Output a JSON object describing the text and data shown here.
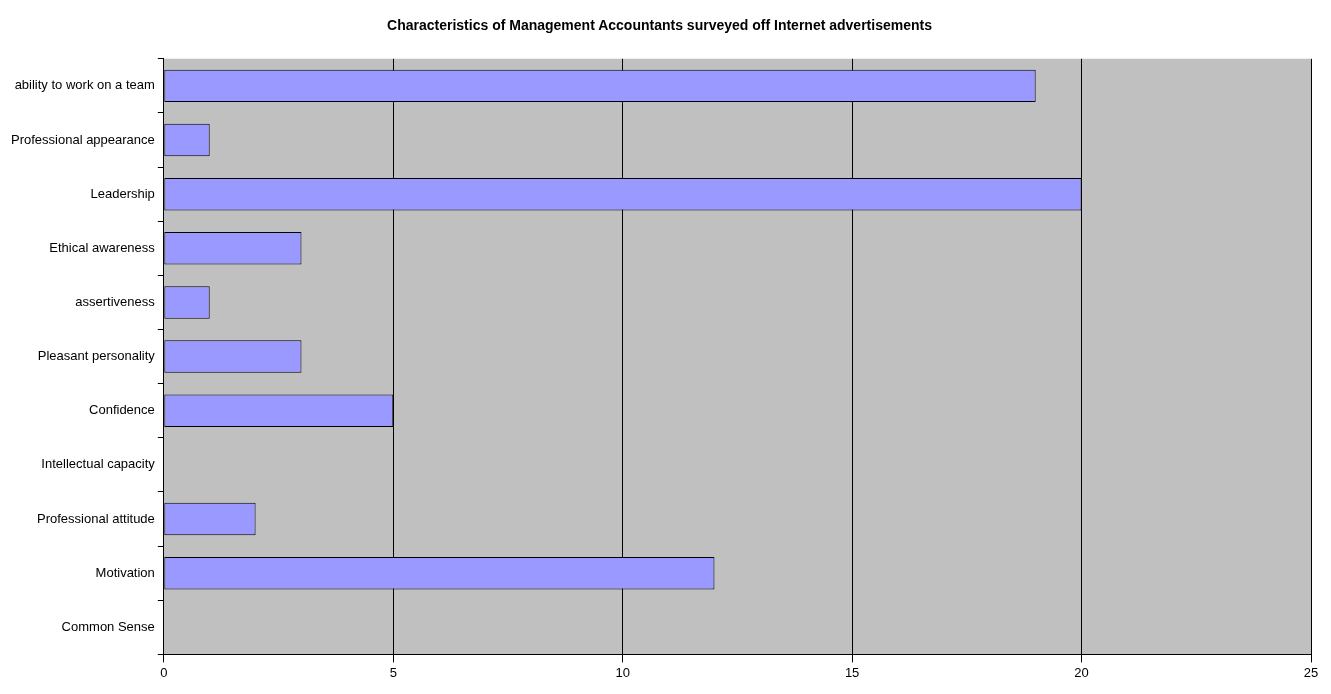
{
  "chart_data": {
    "type": "bar",
    "orientation": "horizontal",
    "title": "Characteristics of Management Accountants surveyed off Internet advertisements",
    "categories": [
      "ability to work on a team",
      "Professional appearance",
      "Leadership",
      "Ethical awareness",
      "assertiveness",
      "Pleasant personality",
      "Confidence",
      "Intellectual capacity",
      "Professional attitude",
      "Motivation",
      "Common Sense"
    ],
    "values": [
      19,
      1,
      20,
      3,
      1,
      3,
      5,
      0,
      2,
      12,
      0
    ],
    "color": "#9999ff",
    "xlim": [
      0,
      25
    ],
    "xticks": [
      0,
      5,
      10,
      15,
      20,
      25
    ],
    "grid": "x",
    "legend": false
  }
}
